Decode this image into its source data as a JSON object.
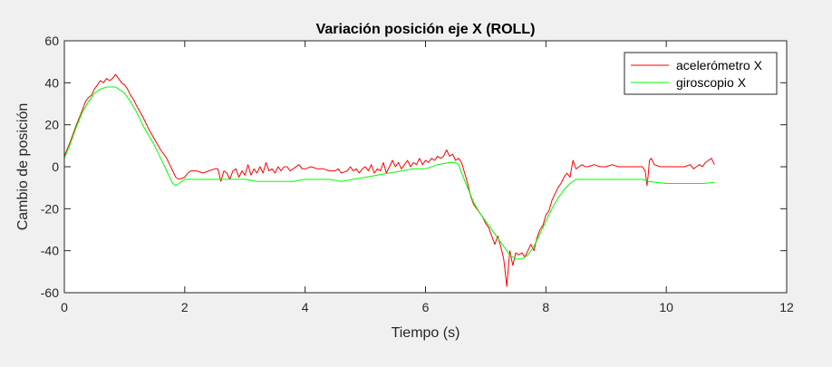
{
  "chart_data": {
    "type": "line",
    "title": "Variación posición eje X (ROLL)",
    "xlabel": "Tiempo (s)",
    "ylabel": "Cambio de posición",
    "xlim": [
      0,
      12
    ],
    "ylim": [
      -60,
      60
    ],
    "xticks": [
      0,
      2,
      4,
      6,
      8,
      10,
      12
    ],
    "yticks": [
      -60,
      -40,
      -20,
      0,
      20,
      40,
      60
    ],
    "grid": false,
    "legend_position": "top-right",
    "series": [
      {
        "name": "acelerómetro X",
        "color": "#ff0000",
        "points": [
          [
            0.0,
            5
          ],
          [
            0.1,
            12
          ],
          [
            0.2,
            20
          ],
          [
            0.3,
            27
          ],
          [
            0.35,
            31
          ],
          [
            0.4,
            33
          ],
          [
            0.45,
            34
          ],
          [
            0.5,
            37
          ],
          [
            0.55,
            39
          ],
          [
            0.6,
            41
          ],
          [
            0.65,
            40
          ],
          [
            0.7,
            42
          ],
          [
            0.75,
            41
          ],
          [
            0.8,
            42
          ],
          [
            0.85,
            44
          ],
          [
            0.9,
            42
          ],
          [
            0.95,
            40
          ],
          [
            1.0,
            39
          ],
          [
            1.05,
            37
          ],
          [
            1.1,
            34
          ],
          [
            1.15,
            32
          ],
          [
            1.2,
            29
          ],
          [
            1.3,
            24
          ],
          [
            1.4,
            18
          ],
          [
            1.5,
            13
          ],
          [
            1.6,
            8
          ],
          [
            1.7,
            4
          ],
          [
            1.8,
            -2
          ],
          [
            1.85,
            -5
          ],
          [
            1.9,
            -6
          ],
          [
            2.0,
            -5
          ],
          [
            2.05,
            -3
          ],
          [
            2.1,
            -2
          ],
          [
            2.2,
            -2
          ],
          [
            2.3,
            -3
          ],
          [
            2.4,
            -2
          ],
          [
            2.5,
            -1
          ],
          [
            2.55,
            -1
          ],
          [
            2.6,
            -7
          ],
          [
            2.65,
            -2
          ],
          [
            2.7,
            -3
          ],
          [
            2.75,
            -6
          ],
          [
            2.8,
            -2
          ],
          [
            2.85,
            -1
          ],
          [
            2.9,
            -5
          ],
          [
            2.95,
            -2
          ],
          [
            3.0,
            -4
          ],
          [
            3.05,
            1
          ],
          [
            3.1,
            -4
          ],
          [
            3.15,
            -1
          ],
          [
            3.2,
            -3
          ],
          [
            3.25,
            0
          ],
          [
            3.3,
            -3
          ],
          [
            3.35,
            2
          ],
          [
            3.4,
            -2
          ],
          [
            3.45,
            -1
          ],
          [
            3.5,
            -3
          ],
          [
            3.55,
            0
          ],
          [
            3.6,
            -2
          ],
          [
            3.65,
            0
          ],
          [
            3.7,
            0
          ],
          [
            3.75,
            -2
          ],
          [
            3.8,
            -1
          ],
          [
            3.9,
            1
          ],
          [
            3.95,
            -1
          ],
          [
            4.0,
            -1
          ],
          [
            4.1,
            0
          ],
          [
            4.2,
            -1
          ],
          [
            4.3,
            -1
          ],
          [
            4.4,
            -2
          ],
          [
            4.5,
            -2
          ],
          [
            4.55,
            -1
          ],
          [
            4.6,
            -3
          ],
          [
            4.7,
            -2
          ],
          [
            4.75,
            0
          ],
          [
            4.8,
            -2
          ],
          [
            4.85,
            -1
          ],
          [
            4.9,
            -3
          ],
          [
            4.95,
            -1
          ],
          [
            5.0,
            0
          ],
          [
            5.05,
            -2
          ],
          [
            5.1,
            1
          ],
          [
            5.15,
            -3
          ],
          [
            5.2,
            -1
          ],
          [
            5.25,
            -2
          ],
          [
            5.3,
            2
          ],
          [
            5.35,
            -3
          ],
          [
            5.4,
            0
          ],
          [
            5.45,
            3
          ],
          [
            5.5,
            0
          ],
          [
            5.55,
            2
          ],
          [
            5.6,
            -1
          ],
          [
            5.65,
            1
          ],
          [
            5.7,
            3
          ],
          [
            5.75,
            0
          ],
          [
            5.8,
            2
          ],
          [
            5.85,
            1
          ],
          [
            5.9,
            4
          ],
          [
            5.95,
            1
          ],
          [
            6.0,
            3
          ],
          [
            6.05,
            2
          ],
          [
            6.1,
            4
          ],
          [
            6.15,
            3
          ],
          [
            6.2,
            5
          ],
          [
            6.25,
            4
          ],
          [
            6.3,
            5
          ],
          [
            6.35,
            8
          ],
          [
            6.4,
            5
          ],
          [
            6.45,
            6
          ],
          [
            6.5,
            3
          ],
          [
            6.55,
            4
          ],
          [
            6.6,
            2
          ],
          [
            6.65,
            -3
          ],
          [
            6.7,
            -8
          ],
          [
            6.75,
            -14
          ],
          [
            6.8,
            -18
          ],
          [
            6.85,
            -20
          ],
          [
            6.9,
            -22
          ],
          [
            6.95,
            -24
          ],
          [
            7.0,
            -27
          ],
          [
            7.05,
            -29
          ],
          [
            7.1,
            -33
          ],
          [
            7.15,
            -37
          ],
          [
            7.2,
            -33
          ],
          [
            7.25,
            -38
          ],
          [
            7.3,
            -44
          ],
          [
            7.35,
            -57
          ],
          [
            7.4,
            -40
          ],
          [
            7.45,
            -47
          ],
          [
            7.5,
            -41
          ],
          [
            7.55,
            -42
          ],
          [
            7.6,
            -41
          ],
          [
            7.65,
            -43
          ],
          [
            7.7,
            -40
          ],
          [
            7.75,
            -37
          ],
          [
            7.8,
            -40
          ],
          [
            7.85,
            -34
          ],
          [
            7.9,
            -30
          ],
          [
            7.95,
            -28
          ],
          [
            8.0,
            -23
          ],
          [
            8.05,
            -21
          ],
          [
            8.1,
            -16
          ],
          [
            8.15,
            -13
          ],
          [
            8.2,
            -10
          ],
          [
            8.25,
            -8
          ],
          [
            8.3,
            -5
          ],
          [
            8.35,
            -3
          ],
          [
            8.4,
            -5
          ],
          [
            8.45,
            3
          ],
          [
            8.5,
            -1
          ],
          [
            8.55,
            0
          ],
          [
            8.6,
            1
          ],
          [
            8.65,
            0
          ],
          [
            8.7,
            0
          ],
          [
            8.8,
            1
          ],
          [
            8.9,
            0
          ],
          [
            9.0,
            0
          ],
          [
            9.1,
            1
          ],
          [
            9.2,
            0
          ],
          [
            9.3,
            0
          ],
          [
            9.4,
            0
          ],
          [
            9.5,
            0
          ],
          [
            9.6,
            0
          ],
          [
            9.65,
            -2
          ],
          [
            9.68,
            -9
          ],
          [
            9.7,
            -4
          ],
          [
            9.72,
            3
          ],
          [
            9.75,
            4
          ],
          [
            9.8,
            1
          ],
          [
            9.9,
            0
          ],
          [
            10.0,
            0
          ],
          [
            10.1,
            0
          ],
          [
            10.2,
            0
          ],
          [
            10.3,
            0
          ],
          [
            10.4,
            1
          ],
          [
            10.45,
            -1
          ],
          [
            10.5,
            0
          ],
          [
            10.55,
            1
          ],
          [
            10.6,
            0
          ],
          [
            10.65,
            2
          ],
          [
            10.7,
            3
          ],
          [
            10.75,
            4
          ],
          [
            10.8,
            1
          ]
        ]
      },
      {
        "name": "giroscopio X",
        "color": "#00ff00",
        "points": [
          [
            0.0,
            4
          ],
          [
            0.1,
            11
          ],
          [
            0.2,
            19
          ],
          [
            0.3,
            26
          ],
          [
            0.4,
            31
          ],
          [
            0.5,
            35
          ],
          [
            0.6,
            37
          ],
          [
            0.7,
            38
          ],
          [
            0.8,
            38
          ],
          [
            0.85,
            38
          ],
          [
            0.9,
            37
          ],
          [
            1.0,
            35
          ],
          [
            1.1,
            31
          ],
          [
            1.2,
            26
          ],
          [
            1.3,
            20
          ],
          [
            1.4,
            15
          ],
          [
            1.5,
            10
          ],
          [
            1.6,
            4
          ],
          [
            1.7,
            -2
          ],
          [
            1.75,
            -5
          ],
          [
            1.8,
            -8
          ],
          [
            1.85,
            -9
          ],
          [
            1.9,
            -8
          ],
          [
            1.95,
            -7
          ],
          [
            2.0,
            -6
          ],
          [
            2.2,
            -6
          ],
          [
            2.4,
            -6
          ],
          [
            2.6,
            -6
          ],
          [
            2.8,
            -6
          ],
          [
            3.0,
            -6
          ],
          [
            3.2,
            -7
          ],
          [
            3.4,
            -7
          ],
          [
            3.6,
            -7
          ],
          [
            3.8,
            -7
          ],
          [
            4.0,
            -6
          ],
          [
            4.2,
            -6
          ],
          [
            4.4,
            -6
          ],
          [
            4.6,
            -7
          ],
          [
            4.8,
            -6
          ],
          [
            5.0,
            -5
          ],
          [
            5.2,
            -4
          ],
          [
            5.4,
            -3
          ],
          [
            5.6,
            -2
          ],
          [
            5.8,
            -1
          ],
          [
            6.0,
            -1
          ],
          [
            6.2,
            1
          ],
          [
            6.4,
            2
          ],
          [
            6.5,
            2
          ],
          [
            6.55,
            1
          ],
          [
            6.6,
            -3
          ],
          [
            6.7,
            -10
          ],
          [
            6.8,
            -17
          ],
          [
            6.9,
            -22
          ],
          [
            7.0,
            -26
          ],
          [
            7.1,
            -30
          ],
          [
            7.2,
            -34
          ],
          [
            7.3,
            -38
          ],
          [
            7.4,
            -42
          ],
          [
            7.5,
            -44
          ],
          [
            7.6,
            -44
          ],
          [
            7.65,
            -43
          ],
          [
            7.7,
            -42
          ],
          [
            7.8,
            -38
          ],
          [
            7.9,
            -32
          ],
          [
            8.0,
            -26
          ],
          [
            8.1,
            -20
          ],
          [
            8.2,
            -15
          ],
          [
            8.3,
            -11
          ],
          [
            8.4,
            -8
          ],
          [
            8.5,
            -6
          ],
          [
            8.7,
            -6
          ],
          [
            9.0,
            -6
          ],
          [
            9.3,
            -6
          ],
          [
            9.6,
            -6
          ],
          [
            9.7,
            -7
          ],
          [
            10.0,
            -8
          ],
          [
            10.3,
            -8
          ],
          [
            10.6,
            -8
          ],
          [
            10.8,
            -7.5
          ]
        ]
      }
    ]
  }
}
